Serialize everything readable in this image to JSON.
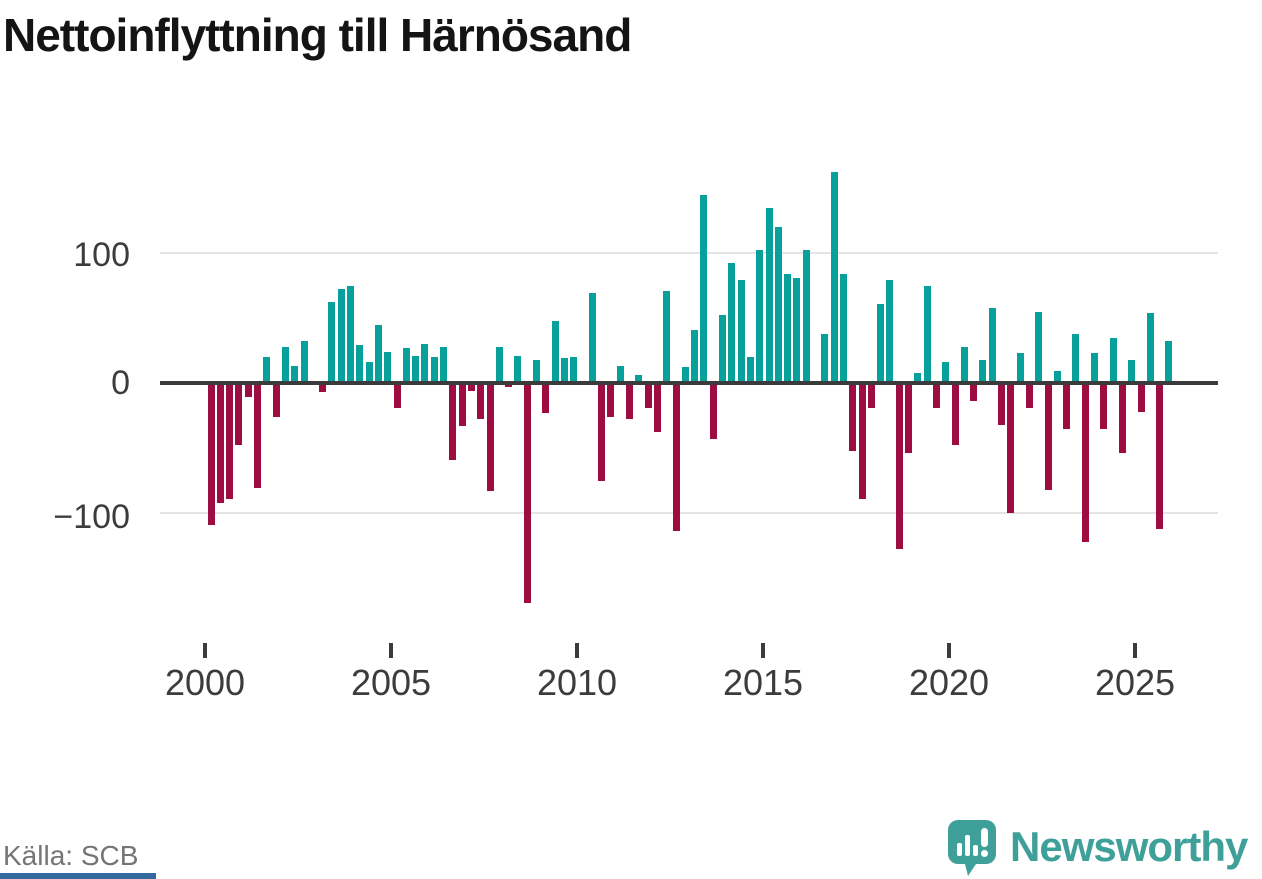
{
  "title": "Nettoinflyttning till Härnösand",
  "source": "Källa: SCB",
  "branding": {
    "logo_text": "Newsworthy",
    "logo_icon": "bar-chart-speech-bubble-icon",
    "brand_color": "#3fa09a"
  },
  "colors": {
    "positive_bar": "#07a09a",
    "negative_bar": "#9e0d42",
    "axis_line": "#3b3b3b",
    "gridline": "#e4e4e4",
    "tick_label": "#3c3c3c",
    "title_text": "#141414",
    "source_text": "#757575",
    "footer_strip": "#33689d",
    "background": "#ffffff"
  },
  "chart_data": {
    "type": "bar",
    "title": "Nettoinflyttning till Härnösand",
    "frequency": "quarterly",
    "start": "2000Q1",
    "end": "2025Q4",
    "x_tick_labels": [
      "2000",
      "2005",
      "2010",
      "2015",
      "2020",
      "2025"
    ],
    "y_tick_labels": [
      "100",
      "0",
      "−100"
    ],
    "y_ticks": [
      100,
      0,
      -100
    ],
    "ylim": [
      -180,
      178
    ],
    "grid": "horizontal gridlines at 100 and -100, dark zero axis",
    "legend": "none",
    "positive_color": "#07a09a",
    "negative_color": "#9e0d42",
    "values": [
      -109,
      -92,
      -89,
      -48,
      -11,
      -81,
      20,
      -26,
      28,
      13,
      32,
      0,
      -7,
      62,
      72,
      75,
      29,
      16,
      45,
      24,
      -19,
      27,
      21,
      30,
      20,
      28,
      -59,
      -33,
      -6,
      -28,
      -83,
      28,
      -3,
      21,
      -169,
      18,
      -23,
      48,
      19,
      20,
      0,
      69,
      -75,
      -26,
      13,
      -28,
      6,
      -19,
      -38,
      71,
      -114,
      12,
      41,
      145,
      -43,
      52,
      92,
      79,
      20,
      102,
      135,
      120,
      84,
      81,
      102,
      0,
      38,
      162,
      84,
      -52,
      -89,
      -19,
      61,
      79,
      -128,
      -54,
      8,
      75,
      -19,
      16,
      -48,
      28,
      -14,
      18,
      58,
      -32,
      -100,
      23,
      -19,
      55,
      -82,
      9,
      -35,
      38,
      -122,
      23,
      -35,
      35,
      -54,
      18,
      -22,
      54,
      -112,
      32
    ]
  }
}
